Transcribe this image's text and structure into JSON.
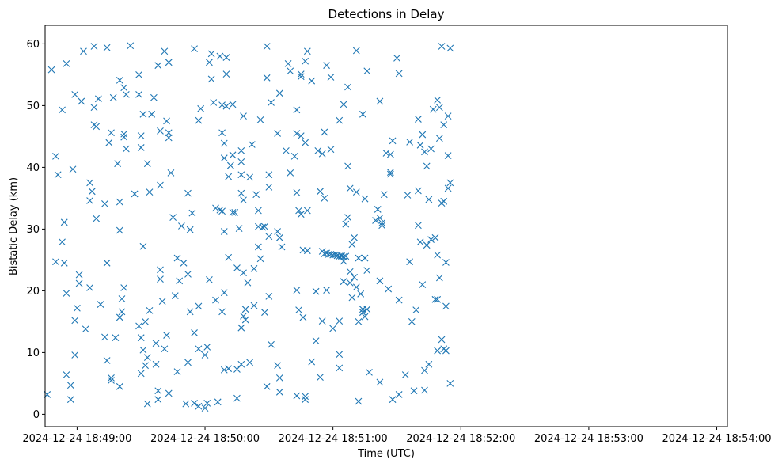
{
  "chart_data": {
    "type": "scatter",
    "title": "Detections in Delay",
    "xlabel": "Time (UTC)",
    "ylabel": "Bistatic Delay (km)",
    "x_ticks": [
      "2024-12-24 18:49:00",
      "2024-12-24 18:50:00",
      "2024-12-24 18:51:00",
      "2024-12-24 18:52:00",
      "2024-12-24 18:53:00",
      "2024-12-24 18:54:00"
    ],
    "y_ticks": [
      "0",
      "10",
      "20",
      "30",
      "40",
      "50",
      "60"
    ],
    "xlim": [
      "2024-12-24 18:48:45",
      "2024-12-24 18:54:05"
    ],
    "ylim": [
      -2,
      63
    ],
    "marker": "x",
    "color": "#1f77b4",
    "grid": false,
    "points": [
      [
        "18:48:46",
        3.2
      ],
      [
        "18:48:48",
        55.8
      ],
      [
        "18:48:50",
        41.8
      ],
      [
        "18:48:50",
        24.7
      ],
      [
        "18:48:51",
        38.8
      ],
      [
        "18:48:53",
        49.3
      ],
      [
        "18:48:53",
        27.9
      ],
      [
        "18:48:54",
        31.1
      ],
      [
        "18:48:54",
        24.5
      ],
      [
        "18:48:55",
        19.6
      ],
      [
        "18:48:55",
        6.4
      ],
      [
        "18:48:55",
        56.8
      ],
      [
        "18:48:57",
        4.7
      ],
      [
        "18:48:57",
        2.4
      ],
      [
        "18:48:59",
        51.8
      ],
      [
        "18:48:58",
        39.7
      ],
      [
        "18:48:59",
        9.6
      ],
      [
        "18:48:59",
        15.2
      ],
      [
        "18:49:00",
        17.2
      ],
      [
        "18:49:01",
        22.6
      ],
      [
        "18:49:01",
        21.2
      ],
      [
        "18:49:02",
        50.7
      ],
      [
        "18:49:03",
        58.8
      ],
      [
        "18:49:04",
        13.8
      ],
      [
        "18:49:06",
        34.6
      ],
      [
        "18:49:06",
        37.5
      ],
      [
        "18:49:06",
        20.5
      ],
      [
        "18:49:07",
        36.1
      ],
      [
        "18:49:08",
        59.6
      ],
      [
        "18:49:08",
        46.9
      ],
      [
        "18:49:08",
        49.7
      ],
      [
        "18:49:09",
        46.6
      ],
      [
        "18:49:09",
        31.7
      ],
      [
        "18:49:10",
        51.1
      ],
      [
        "18:49:11",
        17.8
      ],
      [
        "18:49:13",
        34.1
      ],
      [
        "18:49:13",
        12.5
      ],
      [
        "18:49:14",
        8.7
      ],
      [
        "18:49:14",
        59.4
      ],
      [
        "18:49:14",
        24.5
      ],
      [
        "18:49:15",
        44.0
      ],
      [
        "18:49:16",
        45.6
      ],
      [
        "18:49:16",
        5.9
      ],
      [
        "18:49:16",
        5.5
      ],
      [
        "18:49:17",
        51.3
      ],
      [
        "18:49:18",
        12.4
      ],
      [
        "18:49:19",
        40.6
      ],
      [
        "18:49:20",
        54.1
      ],
      [
        "18:49:20",
        34.4
      ],
      [
        "18:49:20",
        29.8
      ],
      [
        "18:49:20",
        15.7
      ],
      [
        "18:49:20",
        4.5
      ],
      [
        "18:49:21",
        16.6
      ],
      [
        "18:49:21",
        18.7
      ],
      [
        "18:49:22",
        44.9
      ],
      [
        "18:49:22",
        20.5
      ],
      [
        "18:49:22",
        45.4
      ],
      [
        "18:49:22",
        52.9
      ],
      [
        "18:49:23",
        43.0
      ],
      [
        "18:49:23",
        51.8
      ],
      [
        "18:49:25",
        59.7
      ],
      [
        "18:49:27",
        35.7
      ],
      [
        "18:49:29",
        55.0
      ],
      [
        "18:49:29",
        14.3
      ],
      [
        "18:49:29",
        51.8
      ],
      [
        "18:49:30",
        45.1
      ],
      [
        "18:49:30",
        43.2
      ],
      [
        "18:49:30",
        12.4
      ],
      [
        "18:49:30",
        6.6
      ],
      [
        "18:49:31",
        48.6
      ],
      [
        "18:49:31",
        27.2
      ],
      [
        "18:49:31",
        10.4
      ],
      [
        "18:49:32",
        15.0
      ],
      [
        "18:49:32",
        7.9
      ],
      [
        "18:49:33",
        40.6
      ],
      [
        "18:49:33",
        9.2
      ],
      [
        "18:49:33",
        1.7
      ],
      [
        "18:49:34",
        36.0
      ],
      [
        "18:49:34",
        16.8
      ],
      [
        "18:49:35",
        48.6
      ],
      [
        "18:49:36",
        51.3
      ],
      [
        "18:49:37",
        11.5
      ],
      [
        "18:49:37",
        8.1
      ],
      [
        "18:49:38",
        3.8
      ],
      [
        "18:49:38",
        2.4
      ],
      [
        "18:49:38",
        56.5
      ],
      [
        "18:49:39",
        45.9
      ],
      [
        "18:49:39",
        37.1
      ],
      [
        "18:49:39",
        21.9
      ],
      [
        "18:49:39",
        23.4
      ],
      [
        "18:49:40",
        18.3
      ],
      [
        "18:49:41",
        10.6
      ],
      [
        "18:49:41",
        58.8
      ],
      [
        "18:49:42",
        47.5
      ],
      [
        "18:49:42",
        12.8
      ],
      [
        "18:49:43",
        44.8
      ],
      [
        "18:49:43",
        45.6
      ],
      [
        "18:49:43",
        57.0
      ],
      [
        "18:49:43",
        3.4
      ],
      [
        "18:49:44",
        39.1
      ],
      [
        "18:49:45",
        31.9
      ],
      [
        "18:49:46",
        19.2
      ],
      [
        "18:49:47",
        25.3
      ],
      [
        "18:49:47",
        6.9
      ],
      [
        "18:49:48",
        21.6
      ],
      [
        "18:49:49",
        30.5
      ],
      [
        "18:49:50",
        24.5
      ],
      [
        "18:49:51",
        1.7
      ],
      [
        "18:49:52",
        35.8
      ],
      [
        "18:49:52",
        22.7
      ],
      [
        "18:49:52",
        8.4
      ],
      [
        "18:49:53",
        29.9
      ],
      [
        "18:49:53",
        16.6
      ],
      [
        "18:49:54",
        32.6
      ],
      [
        "18:49:55",
        13.2
      ],
      [
        "18:49:55",
        59.2
      ],
      [
        "18:49:55",
        1.8
      ],
      [
        "18:49:57",
        1.3
      ],
      [
        "18:49:57",
        47.6
      ],
      [
        "18:49:57",
        17.5
      ],
      [
        "18:49:57",
        10.6
      ],
      [
        "18:49:58",
        49.5
      ],
      [
        "18:50:00",
        9.6
      ],
      [
        "18:50:00",
        1.0
      ],
      [
        "18:50:01",
        10.9
      ],
      [
        "18:50:01",
        1.8
      ],
      [
        "18:50:02",
        57.0
      ],
      [
        "18:50:02",
        21.8
      ],
      [
        "18:50:03",
        58.4
      ],
      [
        "18:50:03",
        54.3
      ],
      [
        "18:50:04",
        50.5
      ],
      [
        "18:50:05",
        33.4
      ],
      [
        "18:50:05",
        18.5
      ],
      [
        "18:50:06",
        2.0
      ],
      [
        "18:50:07",
        58.0
      ],
      [
        "18:50:07",
        33.1
      ],
      [
        "18:50:08",
        32.9
      ],
      [
        "18:50:08",
        45.6
      ],
      [
        "18:50:08",
        50.1
      ],
      [
        "18:50:08",
        16.6
      ],
      [
        "18:50:09",
        43.9
      ],
      [
        "18:50:09",
        29.6
      ],
      [
        "18:50:09",
        19.7
      ],
      [
        "18:50:09",
        41.5
      ],
      [
        "18:50:09",
        7.2
      ],
      [
        "18:50:10",
        57.8
      ],
      [
        "18:50:10",
        49.9
      ],
      [
        "18:50:10",
        55.1
      ],
      [
        "18:50:11",
        38.5
      ],
      [
        "18:50:11",
        25.4
      ],
      [
        "18:50:11",
        7.4
      ],
      [
        "18:50:12",
        40.3
      ],
      [
        "18:50:13",
        50.2
      ],
      [
        "18:50:13",
        32.7
      ],
      [
        "18:50:13",
        42.0
      ],
      [
        "18:50:14",
        32.7
      ],
      [
        "18:50:15",
        2.6
      ],
      [
        "18:50:15",
        23.7
      ],
      [
        "18:50:15",
        7.3
      ],
      [
        "18:50:16",
        30.1
      ],
      [
        "18:50:17",
        42.7
      ],
      [
        "18:50:17",
        40.9
      ],
      [
        "18:50:17",
        38.8
      ],
      [
        "18:50:17",
        35.8
      ],
      [
        "18:50:17",
        14.0
      ],
      [
        "18:50:17",
        8.1
      ],
      [
        "18:50:18",
        48.3
      ],
      [
        "18:50:18",
        22.9
      ],
      [
        "18:50:18",
        15.9
      ],
      [
        "18:50:18",
        34.7
      ],
      [
        "18:50:19",
        17.0
      ],
      [
        "18:50:19",
        15.3
      ],
      [
        "18:50:20",
        21.3
      ],
      [
        "18:50:21",
        38.4
      ],
      [
        "18:50:21",
        8.4
      ],
      [
        "18:50:22",
        43.7
      ],
      [
        "18:50:23",
        23.6
      ],
      [
        "18:50:23",
        17.6
      ],
      [
        "18:50:24",
        35.6
      ],
      [
        "18:50:25",
        33.0
      ],
      [
        "18:50:25",
        30.4
      ],
      [
        "18:50:25",
        27.1
      ],
      [
        "18:50:26",
        25.2
      ],
      [
        "18:50:26",
        47.7
      ],
      [
        "18:50:27",
        30.3
      ],
      [
        "18:50:28",
        16.5
      ],
      [
        "18:50:28",
        30.4
      ],
      [
        "18:50:29",
        59.6
      ],
      [
        "18:50:29",
        54.5
      ],
      [
        "18:50:29",
        4.5
      ],
      [
        "18:50:30",
        38.8
      ],
      [
        "18:50:30",
        36.8
      ],
      [
        "18:50:30",
        28.8
      ],
      [
        "18:50:30",
        19.1
      ],
      [
        "18:50:31",
        50.5
      ],
      [
        "18:50:31",
        11.3
      ],
      [
        "18:50:34",
        45.5
      ],
      [
        "18:50:34",
        29.6
      ],
      [
        "18:50:34",
        7.9
      ],
      [
        "18:50:35",
        52.0
      ],
      [
        "18:50:35",
        28.6
      ],
      [
        "18:50:35",
        5.9
      ],
      [
        "18:50:35",
        3.6
      ],
      [
        "18:50:36",
        27.1
      ],
      [
        "18:50:38",
        42.7
      ],
      [
        "18:50:39",
        56.8
      ],
      [
        "18:50:40",
        55.6
      ],
      [
        "18:50:40",
        39.1
      ],
      [
        "18:50:42",
        41.8
      ],
      [
        "18:50:43",
        45.5
      ],
      [
        "18:50:43",
        49.3
      ],
      [
        "18:50:43",
        20.1
      ],
      [
        "18:50:43",
        3.0
      ],
      [
        "18:50:43",
        35.9
      ],
      [
        "18:50:44",
        33.0
      ],
      [
        "18:50:44",
        16.9
      ],
      [
        "18:50:45",
        32.4
      ],
      [
        "18:50:45",
        45.1
      ],
      [
        "18:50:45",
        55.1
      ],
      [
        "18:50:45",
        54.7
      ],
      [
        "18:50:46",
        26.6
      ],
      [
        "18:50:46",
        15.7
      ],
      [
        "18:50:47",
        57.2
      ],
      [
        "18:50:47",
        44.0
      ],
      [
        "18:50:47",
        2.9
      ],
      [
        "18:50:47",
        2.4
      ],
      [
        "18:50:48",
        58.8
      ],
      [
        "18:50:48",
        33.0
      ],
      [
        "18:50:48",
        26.5
      ],
      [
        "18:50:50",
        54.0
      ],
      [
        "18:50:50",
        8.5
      ],
      [
        "18:50:52",
        19.9
      ],
      [
        "18:50:52",
        11.9
      ],
      [
        "18:50:53",
        42.7
      ],
      [
        "18:50:54",
        6.0
      ],
      [
        "18:50:54",
        36.1
      ],
      [
        "18:50:55",
        42.2
      ],
      [
        "18:50:55",
        26.4
      ],
      [
        "18:50:55",
        15.1
      ],
      [
        "18:50:56",
        26.0
      ],
      [
        "18:50:56",
        35.0
      ],
      [
        "18:50:56",
        45.7
      ],
      [
        "18:50:57",
        56.5
      ],
      [
        "18:50:57",
        26.1
      ],
      [
        "18:50:57",
        20.1
      ],
      [
        "18:50:58",
        25.9
      ],
      [
        "18:50:59",
        42.9
      ],
      [
        "18:50:59",
        54.6
      ],
      [
        "18:50:59",
        25.9
      ],
      [
        "18:51:00",
        13.9
      ],
      [
        "18:51:00",
        25.8
      ],
      [
        "18:51:01",
        25.8
      ],
      [
        "18:51:02",
        25.7
      ],
      [
        "18:51:03",
        47.6
      ],
      [
        "18:51:03",
        25.6
      ],
      [
        "18:51:03",
        15.1
      ],
      [
        "18:51:03",
        9.7
      ],
      [
        "18:51:03",
        7.5
      ],
      [
        "18:51:04",
        25.7
      ],
      [
        "18:51:04",
        25.6
      ],
      [
        "18:51:05",
        25.5
      ],
      [
        "18:51:05",
        50.2
      ],
      [
        "18:51:05",
        24.8
      ],
      [
        "18:51:05",
        21.5
      ],
      [
        "18:51:06",
        25.6
      ],
      [
        "18:51:06",
        30.8
      ],
      [
        "18:51:07",
        53.0
      ],
      [
        "18:51:07",
        40.2
      ],
      [
        "18:51:07",
        31.9
      ],
      [
        "18:51:08",
        36.6
      ],
      [
        "18:51:08",
        21.3
      ],
      [
        "18:51:08",
        23.1
      ],
      [
        "18:51:09",
        27.5
      ],
      [
        "18:51:09",
        18.9
      ],
      [
        "18:51:10",
        28.6
      ],
      [
        "18:51:10",
        22.2
      ],
      [
        "18:51:11",
        58.9
      ],
      [
        "18:51:11",
        36.0
      ],
      [
        "18:51:11",
        20.6
      ],
      [
        "18:51:12",
        25.3
      ],
      [
        "18:51:12",
        15.0
      ],
      [
        "18:51:12",
        2.1
      ],
      [
        "18:51:13",
        19.5
      ],
      [
        "18:51:14",
        48.6
      ],
      [
        "18:51:14",
        17.0
      ],
      [
        "18:51:14",
        16.5
      ],
      [
        "18:51:15",
        25.3
      ],
      [
        "18:51:15",
        15.8
      ],
      [
        "18:51:15",
        34.9
      ],
      [
        "18:51:16",
        55.6
      ],
      [
        "18:51:16",
        23.3
      ],
      [
        "18:51:16",
        17.0
      ],
      [
        "18:51:17",
        6.8
      ],
      [
        "18:51:20",
        31.4
      ],
      [
        "18:51:21",
        33.2
      ],
      [
        "18:51:22",
        31.8
      ],
      [
        "18:51:22",
        50.7
      ],
      [
        "18:51:22",
        21.6
      ],
      [
        "18:51:22",
        5.2
      ],
      [
        "18:51:23",
        31.0
      ],
      [
        "18:51:23",
        30.6
      ],
      [
        "18:51:24",
        35.6
      ],
      [
        "18:51:25",
        42.3
      ],
      [
        "18:51:26",
        20.3
      ],
      [
        "18:51:27",
        39.2
      ],
      [
        "18:51:27",
        38.9
      ],
      [
        "18:51:27",
        42.1
      ],
      [
        "18:51:28",
        44.3
      ],
      [
        "18:51:28",
        2.4
      ],
      [
        "18:51:30",
        57.7
      ],
      [
        "18:51:31",
        18.5
      ],
      [
        "18:51:31",
        3.2
      ],
      [
        "18:51:31",
        55.2
      ],
      [
        "18:51:34",
        6.4
      ],
      [
        "18:51:35",
        35.5
      ],
      [
        "18:51:36",
        44.1
      ],
      [
        "18:51:36",
        24.7
      ],
      [
        "18:51:37",
        15.0
      ],
      [
        "18:51:38",
        3.8
      ],
      [
        "18:51:39",
        16.9
      ],
      [
        "18:51:40",
        47.8
      ],
      [
        "18:51:40",
        36.2
      ],
      [
        "18:51:40",
        30.6
      ],
      [
        "18:51:41",
        43.6
      ],
      [
        "18:51:41",
        27.9
      ],
      [
        "18:51:42",
        45.3
      ],
      [
        "18:51:42",
        21.0
      ],
      [
        "18:51:43",
        42.5
      ],
      [
        "18:51:43",
        7.1
      ],
      [
        "18:51:43",
        3.9
      ],
      [
        "18:51:44",
        40.2
      ],
      [
        "18:51:44",
        27.4
      ],
      [
        "18:51:45",
        8.1
      ],
      [
        "18:51:45",
        34.8
      ],
      [
        "18:51:46",
        43.0
      ],
      [
        "18:51:46",
        28.3
      ],
      [
        "18:51:47",
        49.4
      ],
      [
        "18:51:48",
        18.6
      ],
      [
        "18:51:48",
        28.6
      ],
      [
        "18:51:49",
        50.9
      ],
      [
        "18:51:49",
        25.8
      ],
      [
        "18:51:49",
        18.6
      ],
      [
        "18:51:49",
        10.3
      ],
      [
        "18:51:50",
        44.7
      ],
      [
        "18:51:50",
        49.7
      ],
      [
        "18:51:50",
        22.1
      ],
      [
        "18:51:51",
        12.1
      ],
      [
        "18:51:51",
        59.6
      ],
      [
        "18:51:51",
        34.2
      ],
      [
        "18:51:52",
        34.5
      ],
      [
        "18:51:52",
        46.9
      ],
      [
        "18:51:52",
        10.6
      ],
      [
        "18:51:53",
        24.6
      ],
      [
        "18:51:53",
        17.5
      ],
      [
        "18:51:53",
        10.3
      ],
      [
        "18:51:54",
        48.3
      ],
      [
        "18:51:54",
        36.6
      ],
      [
        "18:51:54",
        41.9
      ],
      [
        "18:51:55",
        37.5
      ],
      [
        "18:51:55",
        5.0
      ],
      [
        "18:51:55",
        59.3
      ]
    ]
  }
}
